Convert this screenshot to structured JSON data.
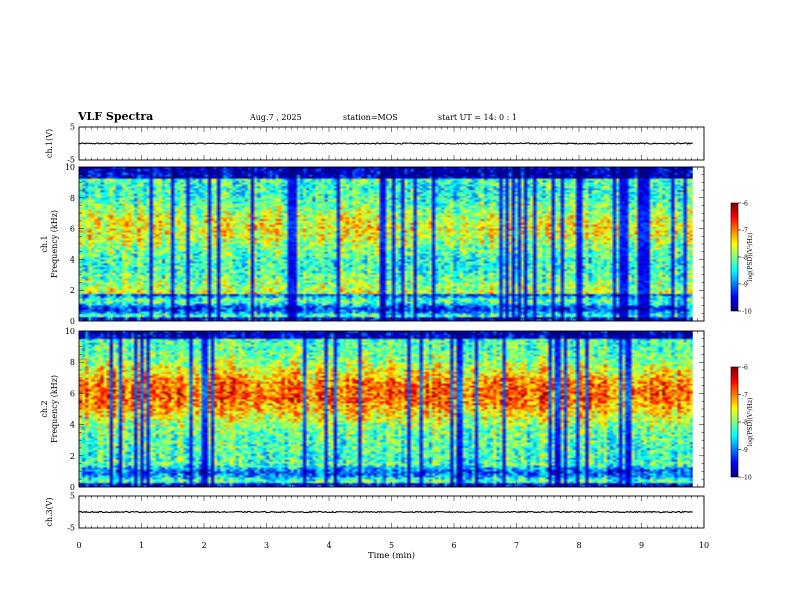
{
  "header": {
    "title": "VLF Spectra",
    "date": "Aug.7 , 2025",
    "station": "station=MOS",
    "start_ut": "start UT = 14: 0 : 1"
  },
  "chart_data": [
    {
      "type": "line",
      "panel": "ch1-waveform",
      "ylabel": "ch.1(V)",
      "yticks": [
        "5",
        "-5"
      ],
      "ylim": [
        -5,
        5
      ],
      "xlim": [
        0,
        10
      ],
      "xticks": [
        "0",
        "1",
        "2",
        "3",
        "4",
        "5",
        "6",
        "7",
        "8",
        "9",
        "10"
      ],
      "series": [
        {
          "x": [
            0,
            9.82
          ],
          "y": [
            0,
            0
          ]
        }
      ],
      "color": "#000000"
    },
    {
      "type": "heatmap",
      "panel": "ch1-spectrogram",
      "ylabel": "ch.1\nFrequency (kHz)",
      "ylim": [
        0,
        10
      ],
      "yticks": [
        "0",
        "2",
        "4",
        "6",
        "8",
        "10"
      ],
      "xlim": [
        0,
        10
      ],
      "data_end_min": 9.82,
      "colorbar": {
        "label": "log(PSD)(V²/Hz)",
        "ticks": [
          "-6",
          "-7",
          "-8",
          "-9",
          "-10"
        ],
        "range": [
          -10,
          -6
        ]
      }
    },
    {
      "type": "heatmap",
      "panel": "ch2-spectrogram",
      "ylabel": "ch.2\nFrequency (kHz)",
      "ylim": [
        0,
        10
      ],
      "yticks": [
        "0",
        "2",
        "4",
        "6",
        "8",
        "10"
      ],
      "xlim": [
        0,
        10
      ],
      "data_end_min": 9.82,
      "colorbar": {
        "label": "log(PSD)(V²/Hz)",
        "ticks": [
          "-6",
          "-7",
          "-8",
          "-9",
          "-10"
        ],
        "range": [
          -10,
          -6
        ]
      }
    },
    {
      "type": "line",
      "panel": "ch3-waveform",
      "ylabel": "ch.3(V)",
      "yticks": [
        "5",
        "-5"
      ],
      "ylim": [
        -5,
        5
      ],
      "xlim": [
        0,
        10
      ],
      "xticks": [
        "0",
        "1",
        "2",
        "3",
        "4",
        "5",
        "6",
        "7",
        "8",
        "9",
        "10"
      ],
      "xlabel": "Time (min)",
      "series": [
        {
          "x": [
            0,
            9.82
          ],
          "y": [
            0,
            0
          ]
        }
      ],
      "color": "#000000"
    }
  ]
}
